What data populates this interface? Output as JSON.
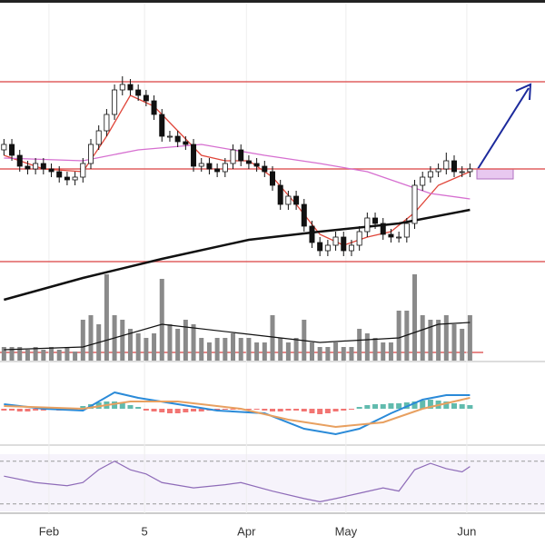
{
  "chart_data": {
    "type": "candlestick",
    "xlim": [
      -0.5,
      68.5
    ],
    "ylim": [
      0,
      100
    ],
    "xticks": [
      {
        "value": 5.7,
        "label": "Feb"
      },
      {
        "value": 17.8,
        "label": "5"
      },
      {
        "value": 30.7,
        "label": "Apr"
      },
      {
        "value": 43.3,
        "label": "May"
      },
      {
        "value": 58.6,
        "label": "Jun"
      }
    ],
    "open": [
      45,
      47,
      43,
      39,
      38,
      40,
      38,
      37,
      35,
      34,
      35,
      40,
      47,
      52,
      58,
      67,
      69,
      67,
      65,
      63,
      58,
      50,
      50,
      48,
      47,
      39,
      40,
      38,
      37,
      40,
      45,
      41,
      40,
      39,
      37,
      32,
      25,
      28,
      25,
      17,
      11,
      8,
      10,
      13,
      8,
      10,
      15,
      20,
      18,
      14,
      13,
      13,
      18,
      32,
      35,
      37,
      38,
      41,
      37,
      37
    ],
    "high": [
      49,
      49,
      45,
      41,
      42,
      42,
      40,
      39,
      37,
      37,
      42,
      49,
      54,
      60,
      69,
      72,
      71,
      69,
      67,
      65,
      60,
      52,
      52,
      50,
      49,
      42,
      42,
      40,
      42,
      47,
      47,
      43,
      42,
      41,
      39,
      34,
      30,
      30,
      27,
      19,
      13,
      12,
      15,
      15,
      12,
      17,
      22,
      22,
      20,
      16,
      15,
      20,
      34,
      37,
      39,
      40,
      44,
      43,
      39,
      40
    ],
    "low": [
      43,
      41,
      37,
      36,
      36,
      36,
      35,
      33,
      32,
      32,
      33,
      38,
      45,
      50,
      56,
      65,
      65,
      63,
      61,
      56,
      48,
      48,
      46,
      45,
      37,
      37,
      36,
      35,
      35,
      38,
      39,
      38,
      37,
      35,
      30,
      23,
      23,
      23,
      15,
      9,
      6,
      6,
      8,
      6,
      6,
      8,
      13,
      16,
      12,
      11,
      11,
      11,
      16,
      30,
      33,
      35,
      36,
      35,
      35,
      35
    ],
    "close": [
      47,
      43,
      39,
      38,
      40,
      38,
      37,
      35,
      34,
      35,
      40,
      47,
      52,
      58,
      67,
      69,
      67,
      65,
      63,
      58,
      50,
      50,
      48,
      47,
      39,
      40,
      38,
      37,
      40,
      45,
      41,
      40,
      39,
      37,
      32,
      25,
      28,
      25,
      17,
      11,
      8,
      10,
      13,
      8,
      10,
      15,
      20,
      18,
      14,
      13,
      13,
      18,
      32,
      35,
      37,
      38,
      41,
      37,
      37,
      38
    ],
    "up_color": "#ffffff",
    "down_color": "#111111",
    "levels": [
      70,
      38,
      4
    ],
    "level_color": "#e06060",
    "overlays": [
      {
        "color": "#e0463a",
        "x": [
          0,
          5,
          10,
          13,
          16,
          19,
          22,
          25,
          28,
          31,
          34,
          37,
          40,
          43,
          46,
          49,
          52,
          55,
          59
        ],
        "values": [
          43,
          38,
          37,
          50,
          65,
          61,
          52,
          43,
          41,
          41,
          35,
          25,
          14,
          10,
          13,
          15,
          22,
          32,
          37
        ]
      },
      {
        "color": "#d66fd0",
        "x": [
          0,
          10,
          17,
          25,
          33,
          40,
          46,
          50,
          54,
          59
        ],
        "values": [
          42,
          41,
          45,
          47,
          43,
          40,
          37,
          33,
          29,
          27
        ]
      },
      {
        "color": "#111111",
        "x": [
          0,
          10,
          20,
          31,
          40,
          50,
          59
        ],
        "values": [
          -10,
          -2,
          5,
          12,
          15,
          18,
          23
        ]
      }
    ],
    "volume": {
      "color": "#8a8a8a",
      "vlim": [
        0,
        100
      ],
      "values": [
        15,
        15,
        15,
        12,
        15,
        12,
        15,
        12,
        15,
        10,
        45,
        50,
        40,
        95,
        50,
        45,
        35,
        30,
        25,
        30,
        90,
        40,
        35,
        45,
        40,
        25,
        20,
        25,
        25,
        30,
        25,
        25,
        20,
        20,
        50,
        25,
        20,
        25,
        45,
        20,
        15,
        15,
        20,
        15,
        15,
        35,
        30,
        25,
        20,
        20,
        55,
        55,
        95,
        50,
        45,
        45,
        50,
        40,
        35,
        50
      ],
      "ma": {
        "color": "#111111",
        "x": [
          0,
          10,
          20,
          30,
          40,
          50,
          55,
          59
        ],
        "values": [
          12,
          15,
          40,
          30,
          20,
          25,
          40,
          42
        ]
      }
    },
    "macd": {
      "lines": [
        {
          "color": "#2a8ad8",
          "x": [
            0,
            5,
            10,
            14,
            17,
            22,
            27,
            33,
            38,
            42,
            45,
            49,
            53,
            56,
            59
          ],
          "values": [
            5,
            0,
            -2,
            18,
            12,
            5,
            -2,
            -5,
            -22,
            -28,
            -22,
            -5,
            10,
            15,
            15
          ]
        },
        {
          "color": "#e8a060",
          "x": [
            0,
            10,
            16,
            22,
            30,
            36,
            42,
            48,
            53,
            59
          ],
          "values": [
            3,
            0,
            8,
            8,
            0,
            -12,
            -20,
            -15,
            0,
            12
          ]
        }
      ],
      "hist": [
        -2,
        -2,
        -3,
        -3,
        -2,
        -2,
        -1,
        -2,
        -2,
        -1,
        3,
        5,
        7,
        8,
        8,
        6,
        4,
        2,
        -2,
        -3,
        -4,
        -5,
        -5,
        -4,
        -3,
        -3,
        -2,
        -2,
        -1,
        -1,
        -1,
        -1,
        -1,
        -2,
        -3,
        -3,
        -2,
        -2,
        -3,
        -5,
        -6,
        -5,
        -3,
        -2,
        -1,
        2,
        4,
        5,
        5,
        6,
        6,
        7,
        8,
        9,
        10,
        9,
        8,
        6,
        5,
        4
      ],
      "pos_color": "#3aaa9a",
      "neg_color": "#ef5350"
    },
    "rsi": {
      "color": "#8e6bb8",
      "levels": [
        70,
        30
      ],
      "x": [
        0,
        4,
        8,
        10,
        12,
        14,
        16,
        18,
        20,
        24,
        28,
        30,
        34,
        38,
        40,
        42,
        45,
        48,
        50,
        52,
        54,
        56,
        58,
        59
      ],
      "values": [
        56,
        50,
        47,
        50,
        62,
        70,
        62,
        58,
        50,
        45,
        48,
        50,
        42,
        35,
        32,
        35,
        40,
        45,
        42,
        62,
        68,
        63,
        60,
        65
      ]
    }
  }
}
